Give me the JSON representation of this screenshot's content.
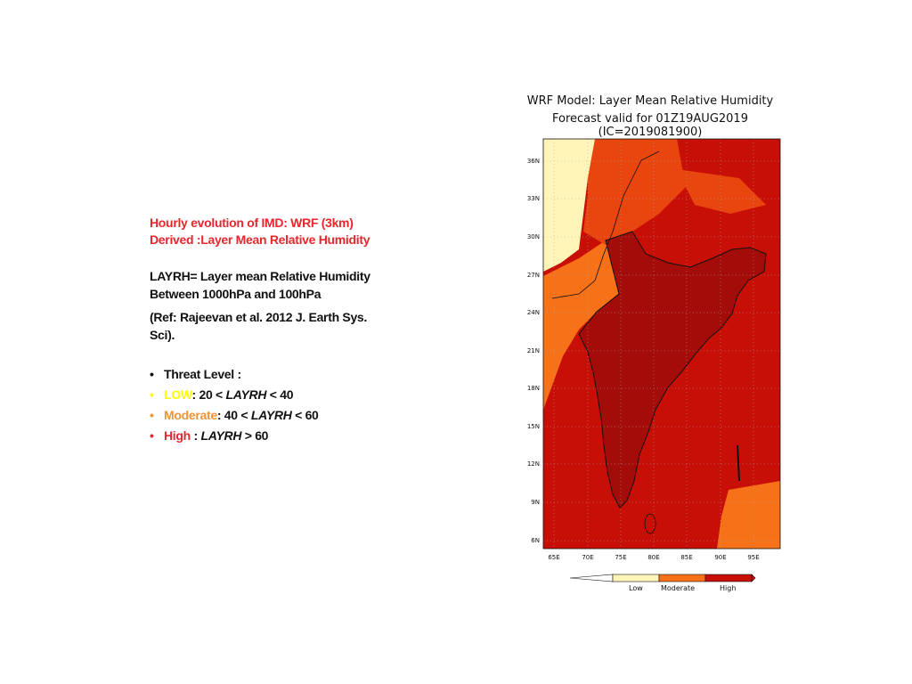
{
  "left_panel": {
    "heading_line1": "Hourly evolution of IMD: WRF (3km)",
    "heading_line2": "Derived :Layer Mean Relative Humidity",
    "def_line1": "LAYRH= Layer mean Relative Humidity",
    "def_line2": "Between 1000hPa and 100hPa",
    "ref_line1": "(Ref: Rajeevan  et al. 2012 J. Earth Sys.",
    "ref_line2": "Sci).",
    "bullet_char": "•",
    "threat_title": "Threat Level :",
    "levels": [
      {
        "name": "LOW",
        "rest_a": ": 20 < ",
        "var": "LAYRH",
        "rest_b": " <  40",
        "color": "#ffff00"
      },
      {
        "name": "Moderate",
        "rest_a": ": 40 < ",
        "var": "LAYRH",
        "rest_b": " < 60",
        "color": "#f29433"
      },
      {
        "name": "High",
        "rest_a": " : ",
        "var": "LAYRH",
        "rest_b": " > 60",
        "color": "#e8262b"
      }
    ]
  },
  "map": {
    "title_line1": "WRF Model: Layer Mean Relative Humidity",
    "title_line2": "Forecast valid for 01Z19AUG2019 (IC=2019081900)",
    "lat_labels": [
      "36N",
      "33N",
      "30N",
      "27N",
      "24N",
      "21N",
      "18N",
      "15N",
      "12N",
      "9N",
      "6N"
    ],
    "lon_labels": [
      "65E",
      "70E",
      "75E",
      "80E",
      "85E",
      "90E",
      "95E"
    ],
    "legend": [
      "Low",
      "Moderate",
      "High"
    ],
    "colors": {
      "low": "#fff5b8",
      "moderate": "#f77118",
      "high": "#c70f08",
      "highest": "#a30c08",
      "orange_dark": "#e8450f"
    }
  }
}
